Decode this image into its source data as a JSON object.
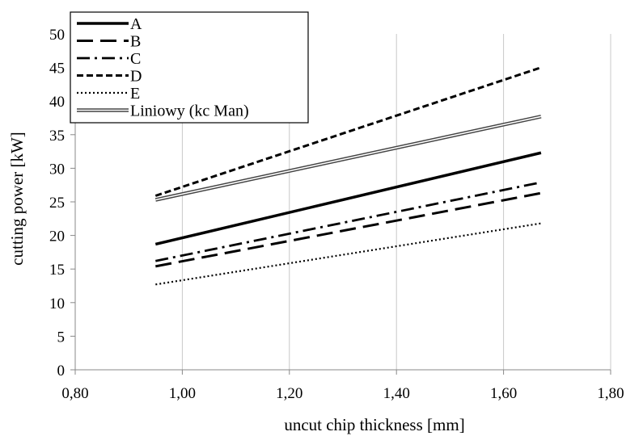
{
  "chart_data": {
    "type": "line",
    "title": "",
    "xlabel": "uncut chip thickness [mm]",
    "ylabel": "cutting power [kW]",
    "xlim": [
      0.8,
      1.8
    ],
    "ylim": [
      0,
      50
    ],
    "xticks": [
      "0,80",
      "1,00",
      "1,20",
      "1,40",
      "1,60",
      "1,80"
    ],
    "yticks": [
      "0",
      "5",
      "10",
      "15",
      "20",
      "25",
      "30",
      "35",
      "40",
      "45",
      "50"
    ],
    "grid": "vertical",
    "legend_position": "top-left",
    "series": [
      {
        "name": "A",
        "style": "solid-thick",
        "x": [
          0.95,
          1.67
        ],
        "y": [
          18.7,
          32.3
        ]
      },
      {
        "name": "B",
        "style": "long-dash",
        "x": [
          0.95,
          1.67
        ],
        "y": [
          15.4,
          26.3
        ]
      },
      {
        "name": "C",
        "style": "dash-dot",
        "x": [
          0.95,
          1.67
        ],
        "y": [
          16.2,
          27.9
        ]
      },
      {
        "name": "D",
        "style": "short-dash",
        "x": [
          0.95,
          1.67
        ],
        "y": [
          25.9,
          45.0
        ]
      },
      {
        "name": "E",
        "style": "dotted",
        "x": [
          0.95,
          1.67
        ],
        "y": [
          12.7,
          21.8
        ]
      },
      {
        "name": "Liniowy (kc  Man)",
        "style": "double-line",
        "x": [
          0.95,
          1.67
        ],
        "y": [
          25.3,
          37.7
        ]
      }
    ]
  }
}
